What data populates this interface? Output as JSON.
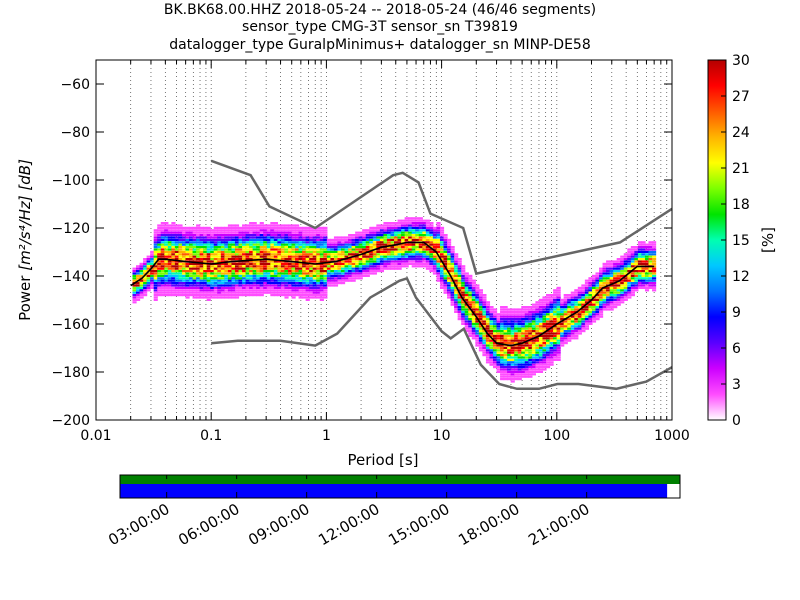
{
  "titles": [
    "BK.BK68.00.HHZ   2018-05-24 -- 2018-05-24  (46/46 segments)",
    "sensor_type CMG-3T sensor_sn T39819",
    "datalogger_type GuralpMinimus+ datalogger_sn MINP-DE58"
  ],
  "chart_data": {
    "type": "heatmap",
    "xlabel": "Period [s]",
    "ylabel_prefix": "Power ",
    "ylabel_units": "[m²/s⁴/Hz] [dB]",
    "x_scale": "log",
    "xlim": [
      0.01,
      1000
    ],
    "ylim": [
      -200,
      -50
    ],
    "x_ticks": [
      0.01,
      0.1,
      1,
      10,
      100,
      1000
    ],
    "x_tick_labels": [
      "0.01",
      "0.1",
      "1",
      "10",
      "100",
      "1000"
    ],
    "y_ticks": [
      -200,
      -180,
      -160,
      -140,
      -120,
      -100,
      -80,
      -60
    ],
    "y_tick_labels": [
      "−200",
      "−180",
      "−160",
      "−140",
      "−120",
      "−100",
      "−80",
      "−60"
    ],
    "grid": "dotted vertical at log-decade minor ticks",
    "mode_curve": [
      [
        0.02,
        -144
      ],
      [
        0.025,
        -141
      ],
      [
        0.03,
        -137
      ],
      [
        0.035,
        -133
      ],
      [
        0.04,
        -133
      ],
      [
        0.06,
        -134
      ],
      [
        0.1,
        -135
      ],
      [
        0.15,
        -134
      ],
      [
        0.3,
        -133
      ],
      [
        0.5,
        -134
      ],
      [
        0.8,
        -135
      ],
      [
        1.2,
        -134
      ],
      [
        2,
        -131
      ],
      [
        3,
        -128
      ],
      [
        4,
        -127
      ],
      [
        5,
        -126
      ],
      [
        7,
        -126
      ],
      [
        9,
        -130
      ],
      [
        12,
        -140
      ],
      [
        15,
        -149
      ],
      [
        20,
        -157
      ],
      [
        25,
        -164
      ],
      [
        30,
        -168
      ],
      [
        40,
        -169
      ],
      [
        50,
        -168
      ],
      [
        70,
        -165
      ],
      [
        100,
        -160
      ],
      [
        150,
        -155
      ],
      [
        200,
        -150
      ],
      [
        250,
        -145
      ],
      [
        350,
        -142
      ],
      [
        500,
        -136
      ],
      [
        700,
        -136
      ]
    ],
    "nhnm": [
      [
        0.1,
        -92
      ],
      [
        0.22,
        -98
      ],
      [
        0.32,
        -111
      ],
      [
        0.8,
        -120
      ],
      [
        3.8,
        -98
      ],
      [
        4.6,
        -97
      ],
      [
        6.3,
        -101
      ],
      [
        8,
        -114
      ],
      [
        15.4,
        -120
      ],
      [
        20,
        -139
      ],
      [
        354,
        -126
      ],
      [
        1000,
        -112
      ]
    ],
    "nlnm": [
      [
        0.1,
        -168
      ],
      [
        0.17,
        -167
      ],
      [
        0.4,
        -167
      ],
      [
        0.8,
        -169
      ],
      [
        1.24,
        -164
      ],
      [
        2.4,
        -149
      ],
      [
        4.3,
        -142
      ],
      [
        5,
        -141
      ],
      [
        6,
        -149
      ],
      [
        10,
        -163
      ],
      [
        12,
        -166
      ],
      [
        15.6,
        -162
      ],
      [
        21.9,
        -177
      ],
      [
        31.6,
        -185
      ],
      [
        45,
        -187
      ],
      [
        70,
        -187
      ],
      [
        101,
        -185
      ],
      [
        154,
        -185
      ],
      [
        328,
        -187
      ],
      [
        600,
        -184
      ],
      [
        1000,
        -178
      ]
    ],
    "colorbar": {
      "label": "[%]",
      "range": [
        0,
        30
      ],
      "ticks": [
        0,
        3,
        6,
        9,
        12,
        15,
        18,
        21,
        24,
        27,
        30
      ],
      "tick_labels": [
        "0",
        "3",
        "6",
        "9",
        "12",
        "15",
        "18",
        "21",
        "24",
        "27",
        "30"
      ],
      "colors": [
        "#ffffff",
        "#ff4dff",
        "#cc00ff",
        "#5a00ff",
        "#0000ff",
        "#0072ff",
        "#00c8ff",
        "#00ffb0",
        "#00e400",
        "#7dff00",
        "#ffff00",
        "#ffb400",
        "#ff5a00",
        "#ff0000",
        "#b40000"
      ]
    },
    "segment_bar": {
      "time_labels": [
        "03:00:00",
        "06:00:00",
        "09:00:00",
        "12:00:00",
        "15:00:00",
        "18:00:00",
        "21:00:00"
      ],
      "time_hours": [
        3,
        6,
        9,
        12,
        15,
        18,
        21
      ],
      "time_range_hours": [
        1,
        25
      ],
      "data_fill_fraction": 0.977,
      "data_color": "#008000",
      "segment_color": "#0000ff"
    }
  }
}
